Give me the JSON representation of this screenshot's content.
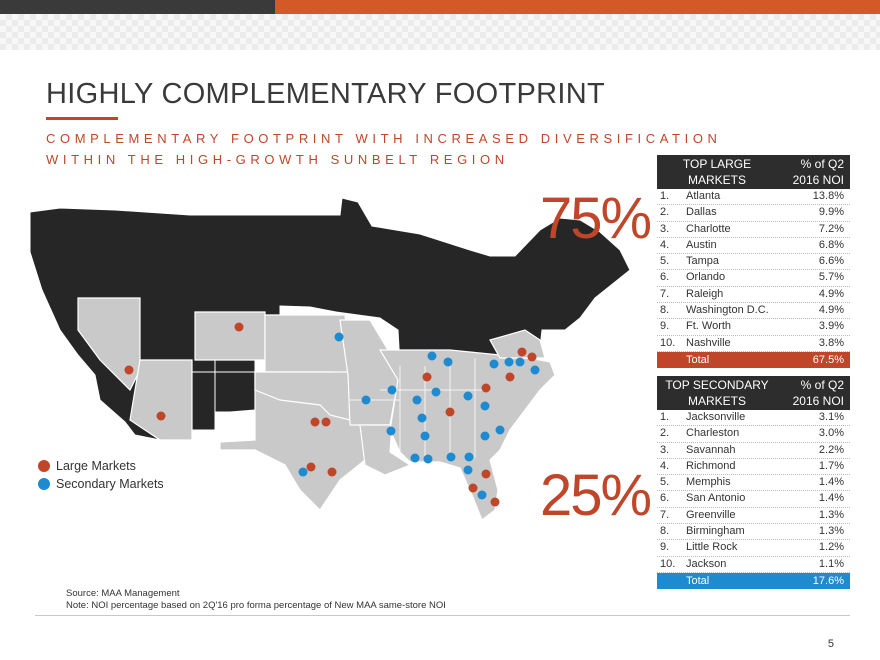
{
  "header": {
    "title": "HIGHLY COMPLEMENTARY FOOTPRINT",
    "subtitle_line1": "COMPLEMENTARY FOOTPRINT WITH INCREASED DIVERSIFICATION",
    "subtitle_line2": "WITHIN THE HIGH-GROWTH SUNBELT REGION"
  },
  "colors": {
    "large": "#c0462a",
    "secondary": "#1e8bd0",
    "total_large": "#c0462a",
    "total_secondary": "#1e8bd0"
  },
  "percentages": {
    "large": "75%",
    "secondary": "25%"
  },
  "legend": {
    "large": "Large Markets",
    "secondary": "Secondary Markets"
  },
  "large_table": {
    "header_col1": "TOP LARGE MARKETS",
    "header_col2": "% of Q2 2016 NOI",
    "rows": [
      {
        "n": "1.",
        "name": "Atlanta",
        "v": "13.8%"
      },
      {
        "n": "2.",
        "name": "Dallas",
        "v": "9.9%"
      },
      {
        "n": "3.",
        "name": "Charlotte",
        "v": "7.2%"
      },
      {
        "n": "4.",
        "name": "Austin",
        "v": "6.8%"
      },
      {
        "n": "5.",
        "name": "Tampa",
        "v": "6.6%"
      },
      {
        "n": "6.",
        "name": "Orlando",
        "v": "5.7%"
      },
      {
        "n": "7.",
        "name": "Raleigh",
        "v": "4.9%"
      },
      {
        "n": "8.",
        "name": "Washington D.C.",
        "v": "4.9%"
      },
      {
        "n": "9.",
        "name": "Ft. Worth",
        "v": "3.9%"
      },
      {
        "n": "10.",
        "name": "Nashville",
        "v": "3.8%"
      }
    ],
    "total_label": "Total",
    "total_value": "67.5%"
  },
  "secondary_table": {
    "header_col1": "TOP SECONDARY MARKETS",
    "header_col2": "% of Q2 2016 NOI",
    "rows": [
      {
        "n": "1.",
        "name": "Jacksonville",
        "v": "3.1%"
      },
      {
        "n": "2.",
        "name": "Charleston",
        "v": "3.0%"
      },
      {
        "n": "3.",
        "name": "Savannah",
        "v": "2.2%"
      },
      {
        "n": "4.",
        "name": "Richmond",
        "v": "1.7%"
      },
      {
        "n": "5.",
        "name": "Memphis",
        "v": "1.4%"
      },
      {
        "n": "6.",
        "name": "San Antonio",
        "v": "1.4%"
      },
      {
        "n": "7.",
        "name": "Greenville",
        "v": "1.3%"
      },
      {
        "n": "8.",
        "name": "Birmingham",
        "v": "1.3%"
      },
      {
        "n": "9.",
        "name": "Little Rock",
        "v": "1.2%"
      },
      {
        "n": "10.",
        "name": "Jackson",
        "v": "1.1%"
      }
    ],
    "total_label": "Total",
    "total_value": "17.6%"
  },
  "footer": {
    "source": "Source: MAA Management",
    "note": "Note: NOI percentage based on 2Q'16 pro forma percentage of New MAA same-store NOI",
    "page": "5"
  }
}
